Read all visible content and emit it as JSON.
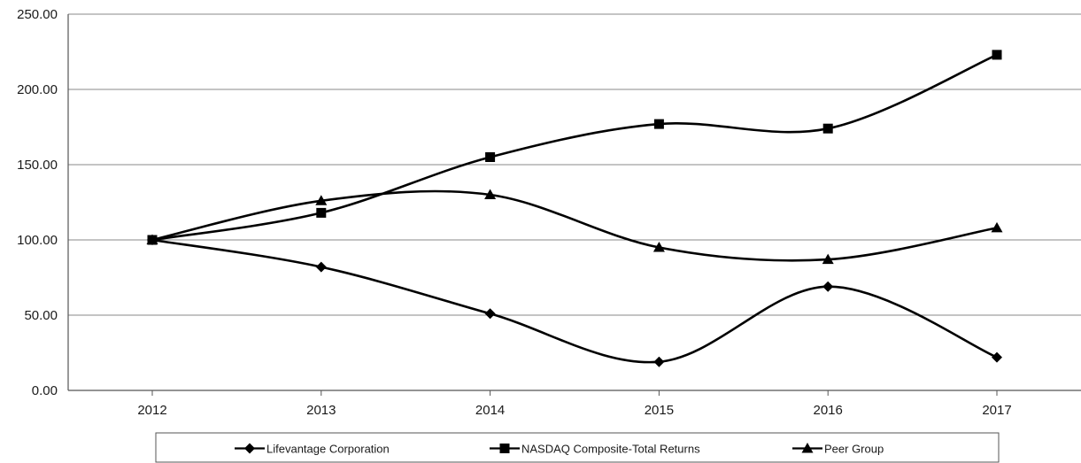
{
  "chart_data": {
    "type": "line",
    "title": "",
    "xlabel": "",
    "ylabel": "",
    "categories": [
      "2012",
      "2013",
      "2014",
      "2015",
      "2016",
      "2017"
    ],
    "ylim": [
      0,
      250
    ],
    "yticks": [
      "0.00",
      "50.00",
      "100.00",
      "150.00",
      "200.00",
      "250.00"
    ],
    "grid": "horizontal",
    "smooth": true,
    "legend_position": "bottom",
    "series": [
      {
        "name": "Lifevantage Corporation",
        "marker": "diamond",
        "color": "#000000",
        "values": [
          100,
          82,
          51,
          19,
          69,
          22
        ]
      },
      {
        "name": "NASDAQ Composite-Total Returns",
        "marker": "square",
        "color": "#000000",
        "values": [
          100,
          118,
          155,
          177,
          174,
          223
        ]
      },
      {
        "name": "Peer Group",
        "marker": "triangle",
        "color": "#000000",
        "values": [
          100,
          126,
          130,
          95,
          87,
          108
        ]
      }
    ]
  }
}
